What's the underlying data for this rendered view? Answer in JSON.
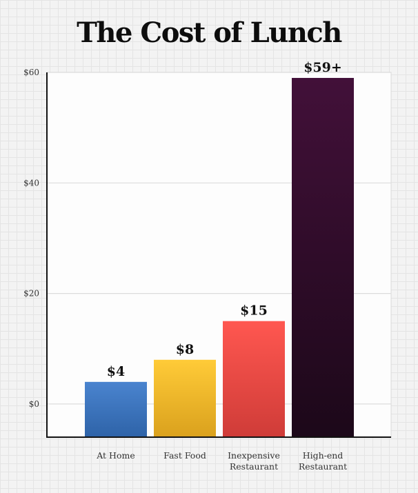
{
  "chart_data": {
    "type": "bar",
    "title": "The Cost of Lunch",
    "xlabel": "",
    "ylabel": "",
    "categories": [
      [
        "At Home"
      ],
      [
        "Fast Food"
      ],
      [
        "Inexpensive",
        "Restaurant"
      ],
      [
        "High-end",
        "Restaurant"
      ]
    ],
    "values": [
      4,
      8,
      15,
      59
    ],
    "data_labels": [
      "$4",
      "$8",
      "$15",
      "$59+"
    ],
    "yticks": [
      {
        "value": 0,
        "label": "$0"
      },
      {
        "value": 20,
        "label": "$20"
      },
      {
        "value": 40,
        "label": "$40"
      },
      {
        "value": 60,
        "label": "$60"
      }
    ],
    "ylim": [
      -6,
      60
    ],
    "grid": true,
    "legend": "none",
    "colors": [
      [
        "#4a84cf",
        "#2e63a8"
      ],
      [
        "#ffcb38",
        "#daa11d"
      ],
      [
        "#ff5750",
        "#cf3c38"
      ],
      [
        "#421039",
        "#1c0819"
      ]
    ]
  }
}
